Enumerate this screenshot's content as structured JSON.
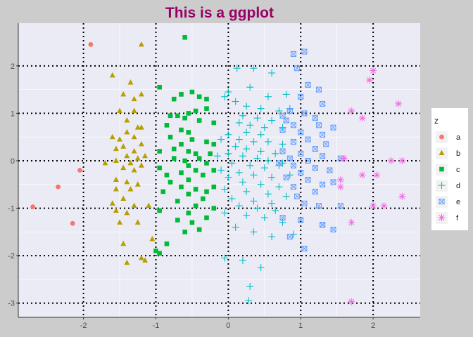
{
  "chart_data": {
    "type": "scatter",
    "title": "This is a ggplot",
    "title_color": "#990066",
    "xlim": [
      -2.9,
      2.65
    ],
    "ylim": [
      -3.3,
      2.9
    ],
    "x_ticks": [
      -2,
      -1,
      0,
      1,
      2
    ],
    "y_ticks": [
      -3,
      -2,
      -1,
      0,
      1,
      2
    ],
    "x_tick_labels": [
      "-2",
      "-1",
      "0",
      "1",
      "2"
    ],
    "y_tick_labels": [
      "-3",
      "-2",
      "-1",
      "0",
      "1",
      "2"
    ],
    "major_grid_style": "dotted black",
    "panel_background": "#ebebf5",
    "plot_background": "#cccccc",
    "legend": {
      "title": "z",
      "position": "right"
    },
    "series": [
      {
        "name": "a",
        "color": "#f8766d",
        "shape": "circle",
        "points": [
          [
            -1.9,
            2.45
          ],
          [
            -2.05,
            -0.2
          ],
          [
            -2.35,
            -0.55
          ],
          [
            -2.7,
            -0.97
          ],
          [
            -2.15,
            -1.32
          ]
        ]
      },
      {
        "name": "b",
        "color": "#b79f00",
        "shape": "triangle",
        "points": [
          [
            -1.2,
            2.45
          ],
          [
            -1.6,
            1.8
          ],
          [
            -1.35,
            1.65
          ],
          [
            -1.45,
            1.4
          ],
          [
            -1.3,
            1.3
          ],
          [
            -1.2,
            1.4
          ],
          [
            -1.3,
            1.05
          ],
          [
            -1.5,
            1.05
          ],
          [
            -1.4,
            0.85
          ],
          [
            -1.25,
            0.7
          ],
          [
            -1.2,
            0.7
          ],
          [
            -1.4,
            0.6
          ],
          [
            -1.6,
            0.5
          ],
          [
            -1.5,
            0.45
          ],
          [
            -1.3,
            0.5
          ],
          [
            -1.2,
            0.35
          ],
          [
            -1.45,
            0.3
          ],
          [
            -1.55,
            0.25
          ],
          [
            -1.3,
            0.2
          ],
          [
            -1.15,
            0.1
          ],
          [
            -1.25,
            0.05
          ],
          [
            -1.4,
            0.1
          ],
          [
            -1.55,
            0.0
          ],
          [
            -1.35,
            -0.05
          ],
          [
            -1.2,
            -0.1
          ],
          [
            -1.45,
            -0.15
          ],
          [
            -1.7,
            -0.05
          ],
          [
            -1.3,
            -0.2
          ],
          [
            -1.55,
            -0.4
          ],
          [
            -1.4,
            -0.45
          ],
          [
            -1.25,
            -0.5
          ],
          [
            -1.55,
            -0.6
          ],
          [
            -1.35,
            -0.6
          ],
          [
            -1.45,
            -0.8
          ],
          [
            -1.6,
            -0.9
          ],
          [
            -1.3,
            -0.95
          ],
          [
            -1.55,
            -1.05
          ],
          [
            -1.1,
            -0.95
          ],
          [
            -1.4,
            -1.1
          ],
          [
            -1.25,
            -1.3
          ],
          [
            -1.5,
            -1.3
          ],
          [
            -1.05,
            -1.65
          ],
          [
            -1.45,
            -1.75
          ],
          [
            -1.2,
            -2.05
          ],
          [
            -1.15,
            -2.1
          ],
          [
            -1.4,
            -2.15
          ]
        ]
      },
      {
        "name": "c",
        "color": "#00ba38",
        "shape": "square",
        "points": [
          [
            -0.6,
            2.6
          ],
          [
            -0.95,
            1.55
          ],
          [
            -0.75,
            1.3
          ],
          [
            -0.65,
            1.4
          ],
          [
            -0.5,
            1.45
          ],
          [
            -0.4,
            1.35
          ],
          [
            -0.3,
            1.3
          ],
          [
            -0.3,
            1.1
          ],
          [
            -0.45,
            1.05
          ],
          [
            -0.55,
            1.0
          ],
          [
            -0.7,
            0.95
          ],
          [
            -0.8,
            0.95
          ],
          [
            -0.6,
            0.9
          ],
          [
            -0.4,
            0.85
          ],
          [
            -0.2,
            0.8
          ],
          [
            -0.85,
            0.75
          ],
          [
            -0.65,
            0.65
          ],
          [
            -0.55,
            0.6
          ],
          [
            -0.8,
            0.5
          ],
          [
            -0.5,
            0.45
          ],
          [
            -0.3,
            0.4
          ],
          [
            -0.2,
            0.35
          ],
          [
            -0.65,
            0.35
          ],
          [
            -0.75,
            0.25
          ],
          [
            -0.55,
            0.2
          ],
          [
            -0.45,
            0.15
          ],
          [
            -0.95,
            0.2
          ],
          [
            -0.25,
            0.15
          ],
          [
            -0.4,
            0.05
          ],
          [
            -0.6,
            0.0
          ],
          [
            -0.75,
            0.05
          ],
          [
            -0.3,
            -0.05
          ],
          [
            -0.55,
            -0.1
          ],
          [
            -0.95,
            -0.15
          ],
          [
            -0.45,
            -0.2
          ],
          [
            -0.2,
            -0.2
          ],
          [
            -0.65,
            -0.25
          ],
          [
            -0.85,
            -0.3
          ],
          [
            -0.35,
            -0.3
          ],
          [
            -0.55,
            -0.4
          ],
          [
            -0.8,
            -0.45
          ],
          [
            -0.65,
            -0.55
          ],
          [
            -0.45,
            -0.6
          ],
          [
            -0.3,
            -0.65
          ],
          [
            -0.2,
            -0.55
          ],
          [
            -0.9,
            -0.65
          ],
          [
            -0.55,
            -0.7
          ],
          [
            -0.35,
            -0.8
          ],
          [
            -0.7,
            -0.85
          ],
          [
            -0.45,
            -0.95
          ],
          [
            -0.2,
            -1.0
          ],
          [
            -0.95,
            -1.05
          ],
          [
            -0.55,
            -1.1
          ],
          [
            -0.3,
            -1.2
          ],
          [
            -0.7,
            -1.25
          ],
          [
            -0.5,
            -1.3
          ],
          [
            -0.4,
            -1.45
          ],
          [
            -0.6,
            -1.5
          ],
          [
            -0.85,
            -1.75
          ],
          [
            -1.0,
            -1.9
          ],
          [
            -0.95,
            -1.95
          ]
        ]
      },
      {
        "name": "d",
        "color": "#00bfc4",
        "shape": "plus",
        "points": [
          [
            0.12,
            1.95
          ],
          [
            0.35,
            1.95
          ],
          [
            0.6,
            1.85
          ],
          [
            0.0,
            1.45
          ],
          [
            0.3,
            1.55
          ],
          [
            0.55,
            1.35
          ],
          [
            0.8,
            1.4
          ],
          [
            -0.05,
            1.35
          ],
          [
            0.1,
            1.25
          ],
          [
            0.25,
            1.15
          ],
          [
            0.45,
            1.1
          ],
          [
            0.7,
            1.05
          ],
          [
            0.85,
            1.1
          ],
          [
            0.2,
            0.95
          ],
          [
            0.4,
            0.9
          ],
          [
            0.6,
            0.85
          ],
          [
            0.15,
            0.8
          ],
          [
            0.3,
            0.75
          ],
          [
            0.5,
            0.7
          ],
          [
            0.75,
            0.7
          ],
          [
            0.25,
            0.6
          ],
          [
            0.45,
            0.55
          ],
          [
            0.0,
            0.55
          ],
          [
            -0.1,
            0.45
          ],
          [
            0.15,
            0.45
          ],
          [
            0.35,
            0.4
          ],
          [
            0.55,
            0.4
          ],
          [
            0.75,
            0.35
          ],
          [
            0.1,
            0.3
          ],
          [
            0.25,
            0.25
          ],
          [
            0.45,
            0.2
          ],
          [
            0.65,
            0.15
          ],
          [
            0.0,
            0.15
          ],
          [
            -0.15,
            0.1
          ],
          [
            0.2,
            0.1
          ],
          [
            0.4,
            0.05
          ],
          [
            0.55,
            0.0
          ],
          [
            0.75,
            -0.05
          ],
          [
            0.05,
            -0.05
          ],
          [
            0.3,
            -0.1
          ],
          [
            0.5,
            -0.15
          ],
          [
            0.7,
            -0.1
          ],
          [
            -0.1,
            -0.2
          ],
          [
            0.15,
            -0.25
          ],
          [
            0.35,
            -0.3
          ],
          [
            0.6,
            -0.35
          ],
          [
            0.85,
            -0.3
          ],
          [
            0.0,
            -0.35
          ],
          [
            0.2,
            -0.45
          ],
          [
            0.45,
            -0.5
          ],
          [
            0.7,
            -0.55
          ],
          [
            -0.05,
            -0.6
          ],
          [
            0.25,
            -0.65
          ],
          [
            0.55,
            -0.7
          ],
          [
            0.8,
            -0.75
          ],
          [
            0.05,
            -0.8
          ],
          [
            0.35,
            -0.85
          ],
          [
            0.6,
            -0.9
          ],
          [
            0.15,
            -0.95
          ],
          [
            0.4,
            -1.0
          ],
          [
            0.65,
            -1.05
          ],
          [
            -0.05,
            -1.1
          ],
          [
            0.25,
            -1.15
          ],
          [
            0.5,
            -1.2
          ],
          [
            0.75,
            -1.3
          ],
          [
            0.1,
            -1.4
          ],
          [
            0.35,
            -1.5
          ],
          [
            0.6,
            -1.6
          ],
          [
            0.9,
            -1.55
          ],
          [
            -0.05,
            -2.05
          ],
          [
            0.2,
            -2.1
          ],
          [
            0.45,
            -2.25
          ],
          [
            0.3,
            -2.65
          ],
          [
            0.28,
            -2.95
          ]
        ]
      },
      {
        "name": "e",
        "color": "#619cff",
        "shape": "boxx",
        "points": [
          [
            1.05,
            2.3
          ],
          [
            0.9,
            2.25
          ],
          [
            0.95,
            1.95
          ],
          [
            1.1,
            1.6
          ],
          [
            1.0,
            1.35
          ],
          [
            1.25,
            1.5
          ],
          [
            1.3,
            1.2
          ],
          [
            0.85,
            1.05
          ],
          [
            1.05,
            1.0
          ],
          [
            0.75,
            0.95
          ],
          [
            1.2,
            0.9
          ],
          [
            0.8,
            0.85
          ],
          [
            0.9,
            0.75
          ],
          [
            1.25,
            0.75
          ],
          [
            1.45,
            0.7
          ],
          [
            0.75,
            0.65
          ],
          [
            1.0,
            0.6
          ],
          [
            1.3,
            0.55
          ],
          [
            1.1,
            0.45
          ],
          [
            0.9,
            0.4
          ],
          [
            1.35,
            0.35
          ],
          [
            1.2,
            0.25
          ],
          [
            0.75,
            0.2
          ],
          [
            1.0,
            0.15
          ],
          [
            1.3,
            0.1
          ],
          [
            0.85,
            0.05
          ],
          [
            1.1,
            0.0
          ],
          [
            1.55,
            0.05
          ],
          [
            0.7,
            -0.05
          ],
          [
            0.9,
            -0.1
          ],
          [
            1.2,
            -0.15
          ],
          [
            1.4,
            -0.2
          ],
          [
            1.0,
            -0.25
          ],
          [
            0.8,
            -0.35
          ],
          [
            1.1,
            -0.4
          ],
          [
            1.45,
            -0.45
          ],
          [
            1.3,
            -0.5
          ],
          [
            0.9,
            -0.55
          ],
          [
            1.2,
            -0.65
          ],
          [
            0.95,
            -0.75
          ],
          [
            1.05,
            -0.9
          ],
          [
            1.25,
            -0.95
          ],
          [
            1.55,
            -0.95
          ],
          [
            0.75,
            -1.2
          ],
          [
            1.0,
            -1.25
          ],
          [
            1.3,
            -1.35
          ],
          [
            1.45,
            -1.45
          ],
          [
            0.85,
            -1.6
          ],
          [
            1.05,
            -1.85
          ],
          [
            1.3,
            -1.35
          ]
        ]
      },
      {
        "name": "f",
        "color": "#f564e3",
        "shape": "star",
        "points": [
          [
            2.0,
            1.9
          ],
          [
            1.95,
            1.7
          ],
          [
            2.35,
            1.2
          ],
          [
            1.7,
            1.05
          ],
          [
            1.85,
            0.9
          ],
          [
            1.6,
            0.05
          ],
          [
            2.25,
            0.0
          ],
          [
            2.4,
            0.0
          ],
          [
            1.55,
            -0.4
          ],
          [
            1.55,
            -0.55
          ],
          [
            1.85,
            -0.3
          ],
          [
            2.05,
            -0.3
          ],
          [
            2.4,
            -0.75
          ],
          [
            2.0,
            -0.95
          ],
          [
            2.15,
            -0.95
          ],
          [
            1.7,
            -1.3
          ],
          [
            1.7,
            -2.97
          ]
        ]
      }
    ]
  }
}
